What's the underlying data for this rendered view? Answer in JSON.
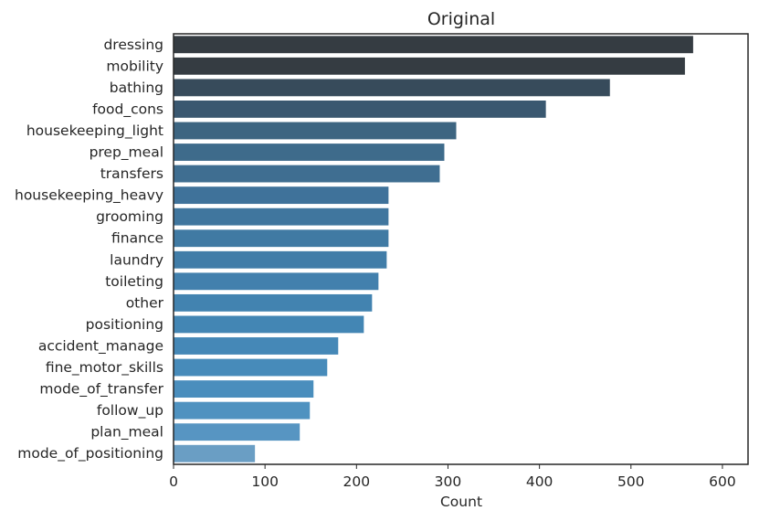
{
  "chart_data": {
    "type": "bar",
    "orientation": "horizontal",
    "title": "Original",
    "xlabel": "Count",
    "ylabel": "",
    "xlim": [
      0,
      628
    ],
    "xticks": [
      0,
      100,
      200,
      300,
      400,
      500,
      600
    ],
    "grid": false,
    "categories": [
      "dressing",
      "mobility",
      "bathing",
      "food_cons",
      "housekeeping_light",
      "prep_meal",
      "transfers",
      "housekeeping_heavy",
      "grooming",
      "finance",
      "laundry",
      "toileting",
      "other",
      "positioning",
      "accident_manage",
      "fine_motor_skills",
      "mode_of_transfer",
      "follow_up",
      "plan_meal",
      "mode_of_positioning"
    ],
    "values": [
      568,
      559,
      477,
      407,
      309,
      296,
      291,
      235,
      235,
      235,
      233,
      224,
      217,
      208,
      180,
      168,
      153,
      149,
      138,
      89
    ],
    "colors": [
      "#353c42",
      "#353c42",
      "#374b5b",
      "#3a5870",
      "#3d6581",
      "#3e6b8b",
      "#3f6e91",
      "#3f729a",
      "#40769e",
      "#407aa3",
      "#417da8",
      "#4280ad",
      "#4283b0",
      "#4386b4",
      "#4588b7",
      "#478bba",
      "#4a8ebd",
      "#4f92c0",
      "#5795c2",
      "#6a9ec4"
    ]
  }
}
